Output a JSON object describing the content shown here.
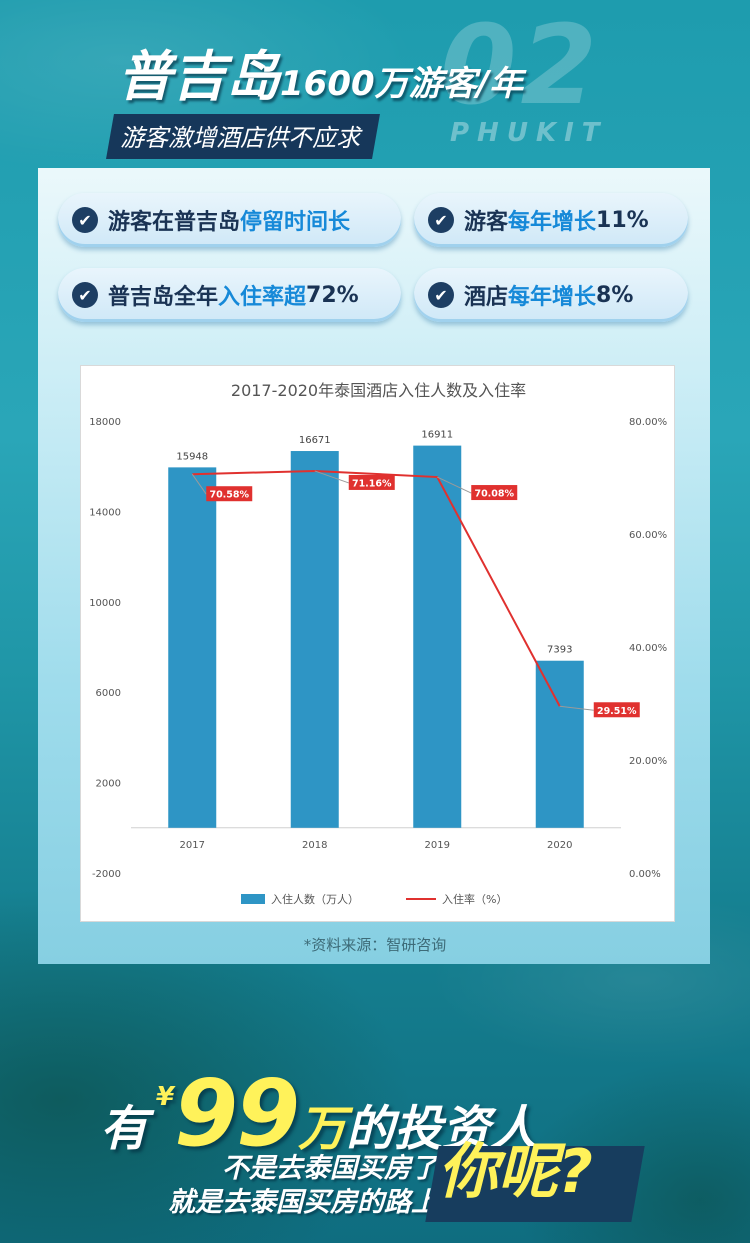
{
  "header": {
    "bg_number": "02",
    "bg_word": "PHUKIT",
    "title_main": "普吉岛",
    "title_sub": "1600万游客/年",
    "subtitle": "游客激增酒店供不应求"
  },
  "features": [
    {
      "pre": "游客在普吉岛",
      "hl": "停留时间长",
      "post": ""
    },
    {
      "pre": "游客",
      "hl": "每年增长",
      "post": "11%"
    },
    {
      "pre": "普吉岛全年",
      "hl": "入住率超",
      "post": "72%"
    },
    {
      "pre": "酒店",
      "hl": "每年增长",
      "post": "8%"
    }
  ],
  "check_icon": "check-icon",
  "chart_data": {
    "type": "bar",
    "title": "2017-2020年泰国酒店入住人数及入住率",
    "categories": [
      "2017",
      "2018",
      "2019",
      "2020"
    ],
    "series": [
      {
        "name": "入住人数（万人）",
        "type": "bar",
        "values": [
          15948,
          16671,
          16911,
          7393
        ],
        "color": "#2e95c5"
      },
      {
        "name": "入住率（%）",
        "type": "line",
        "values": [
          70.58,
          71.16,
          70.08,
          29.51
        ],
        "labels": [
          "70.58%",
          "71.16%",
          "70.08%",
          "29.51%"
        ],
        "color": "#e0312f"
      }
    ],
    "y_left": {
      "range": [
        -2000,
        18000
      ],
      "ticks": [
        "18000",
        "14000",
        "10000",
        "6000",
        "2000",
        "-2000"
      ]
    },
    "y_right": {
      "range": [
        0,
        80
      ],
      "ticks": [
        "80.00%",
        "60.00%",
        "40.00%",
        "20.00%",
        "0.00%"
      ]
    },
    "legend_position": "bottom"
  },
  "source": "*资料来源：智研咨询",
  "slogan": {
    "line1_a": "有",
    "currency": "¥",
    "number": "99",
    "unit": "万",
    "line1_b": "的投资人",
    "line2": "不是去泰国买房了",
    "line3": "就是去泰国买房的路上",
    "ask": "你呢?"
  }
}
